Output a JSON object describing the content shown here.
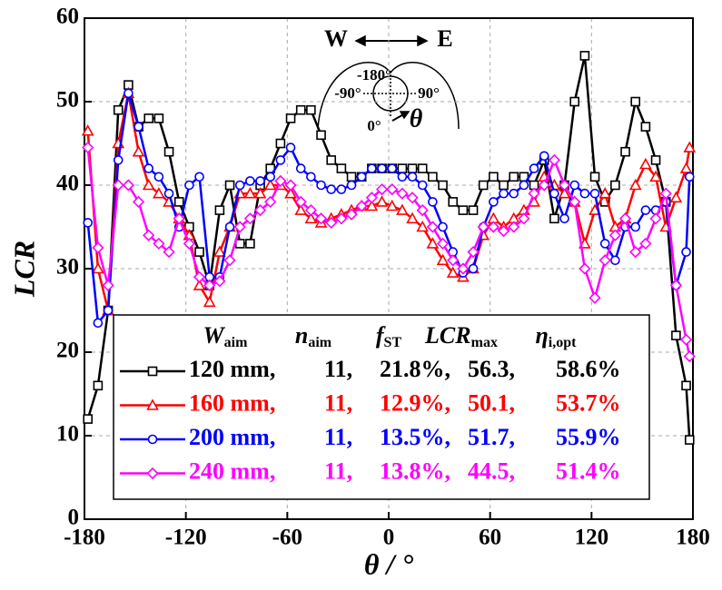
{
  "chart_data": {
    "type": "line",
    "x_label": "θ / °",
    "y_label": "LCR",
    "xlim": [
      -180,
      180
    ],
    "ylim": [
      0,
      60
    ],
    "xticks": [
      -180,
      -120,
      -60,
      0,
      60,
      120,
      180
    ],
    "yticks": [
      0,
      10,
      20,
      30,
      40,
      50,
      60
    ],
    "grid": true,
    "x": [
      -178,
      -172,
      -166,
      -160,
      -154,
      -148,
      -142,
      -136,
      -130,
      -124,
      -118,
      -112,
      -106,
      -100,
      -94,
      -88,
      -82,
      -76,
      -70,
      -64,
      -58,
      -52,
      -46,
      -40,
      -34,
      -28,
      -22,
      -16,
      -10,
      -4,
      2,
      8,
      14,
      20,
      26,
      32,
      38,
      44,
      50,
      56,
      62,
      68,
      74,
      80,
      86,
      92,
      98,
      104,
      110,
      116,
      122,
      128,
      134,
      140,
      146,
      152,
      158,
      164,
      170,
      176,
      178
    ],
    "series": [
      {
        "name": "120 mm,",
        "color": "#000000",
        "marker": "square",
        "table": [
          "11,",
          "21.8%,",
          "56.3,",
          "58.6%"
        ],
        "values": [
          12,
          16,
          25,
          49,
          52,
          47,
          48,
          48,
          44,
          38,
          35,
          32,
          28,
          37,
          40,
          33,
          33,
          40,
          42,
          45,
          48,
          49,
          49,
          46,
          43,
          42,
          41,
          41,
          42,
          42,
          42,
          42,
          42,
          42,
          41,
          40,
          38,
          37,
          37,
          40,
          41,
          40,
          41,
          41,
          40,
          43,
          36,
          40,
          50,
          55.5,
          41,
          38,
          40,
          44,
          50,
          47,
          43,
          38,
          22,
          16,
          9.5
        ]
      },
      {
        "name": "160 mm,",
        "color": "#ff0000",
        "marker": "triangle",
        "table": [
          "11,",
          "12.9%,",
          "50.1,",
          "53.7%"
        ],
        "values": [
          46.5,
          30,
          25,
          45,
          51,
          44,
          40,
          39,
          38,
          36,
          34,
          28,
          26,
          32,
          35,
          39,
          39,
          39,
          40,
          40,
          39,
          37,
          36,
          35.5,
          36,
          36.5,
          37,
          37.5,
          37.5,
          38,
          37.5,
          37,
          36,
          35,
          33,
          31,
          29.5,
          29,
          30,
          34,
          36,
          35,
          36,
          37,
          38,
          41,
          40,
          39,
          38,
          33,
          37,
          39,
          35,
          36,
          40,
          42.5,
          41,
          35,
          38.5,
          42,
          44.5
        ]
      },
      {
        "name": "200 mm,",
        "color": "#0000ff",
        "marker": "circle",
        "table": [
          "11,",
          "13.5%,",
          "51.7,",
          "55.9%"
        ],
        "values": [
          35.5,
          23.5,
          25,
          43,
          51,
          47,
          42,
          41,
          39,
          35,
          40,
          41,
          29,
          29,
          35,
          40,
          40.5,
          40.5,
          41,
          43,
          44.5,
          42,
          41,
          40,
          39.5,
          39.5,
          40,
          41,
          42,
          42,
          42,
          41,
          41,
          40,
          38,
          35,
          32,
          29.5,
          30,
          35,
          38,
          39,
          39,
          40,
          42,
          43.5,
          39,
          36,
          40,
          39,
          39,
          33,
          31,
          35,
          35,
          37,
          37,
          38,
          28,
          32,
          41
        ]
      },
      {
        "name": "240 mm,",
        "color": "#ff00ff",
        "marker": "diamond",
        "table": [
          "11,",
          "13.8%,",
          "44.5,",
          "51.4%"
        ],
        "values": [
          44.5,
          32.5,
          28,
          40,
          40,
          38,
          34,
          33,
          32,
          36,
          33,
          29,
          28,
          28.5,
          31,
          35,
          36,
          37,
          38,
          40.5,
          40,
          38,
          37,
          36,
          35.5,
          36,
          36.5,
          37.5,
          38.5,
          39.5,
          39.5,
          39,
          38.5,
          37,
          35,
          33,
          31,
          30,
          32,
          35,
          35,
          34.5,
          35,
          36,
          39,
          40,
          43,
          40,
          38,
          30,
          26.5,
          31,
          34,
          36,
          32,
          33,
          36,
          39,
          28,
          21.5,
          19.5
        ]
      }
    ],
    "legend_header": [
      {
        "main": "W",
        "sub": "aim"
      },
      {
        "main": "n",
        "sub": "aim"
      },
      {
        "main": "f",
        "sub": "ST"
      },
      {
        "main": "LCR",
        "sub": "max"
      },
      {
        "main": "η",
        "sub": "i,opt"
      }
    ],
    "annotations": [
      "W",
      "E",
      "-180°",
      "-90°",
      "90°",
      "0°",
      "θ"
    ]
  }
}
